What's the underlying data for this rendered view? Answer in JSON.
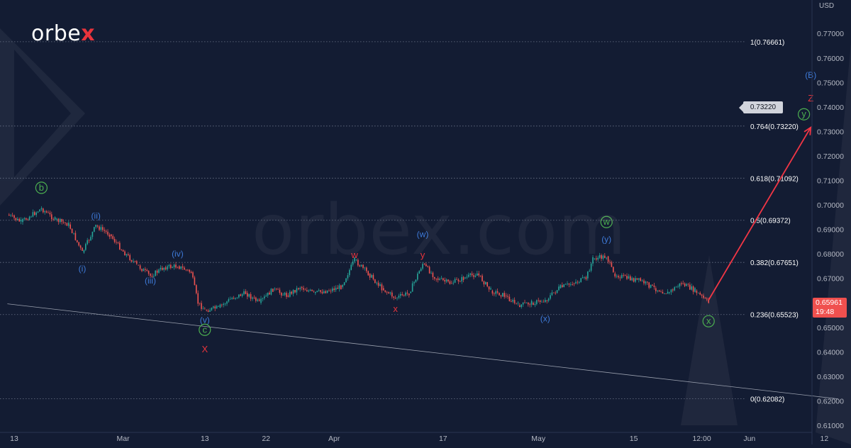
{
  "brand": {
    "logo_text_a": "orbe",
    "logo_text_x": "x",
    "watermark": "orbex.com"
  },
  "colors": {
    "background": "#131c33",
    "candle_up": "#26a69a",
    "candle_down": "#ef5350",
    "blue_label": "#3e7ad8",
    "green_label": "#4caf50",
    "red_label": "#e8343c",
    "arrow": "#f23645"
  },
  "axis": {
    "currency": "USD"
  },
  "current_price": {
    "value": "0.65961",
    "timer": "19:48"
  },
  "target_badge": "0.73220",
  "chart_data": {
    "type": "line",
    "title": "",
    "y_axis": {
      "min": 0.61,
      "max": 0.78,
      "ticks": [
        "0.77000",
        "0.76000",
        "0.75000",
        "0.74000",
        "0.73000",
        "0.72000",
        "0.71000",
        "0.70000",
        "0.69000",
        "0.68000",
        "0.67000",
        "0.66000",
        "0.65000",
        "0.64000",
        "0.63000",
        "0.62000",
        "0.61000"
      ]
    },
    "x_axis": {
      "ticks": [
        {
          "label": "13",
          "date": "2021-02-13"
        },
        {
          "label": "Mar",
          "date": "2021-03-01"
        },
        {
          "label": "13",
          "date": "2021-03-13"
        },
        {
          "label": "22",
          "date": "2021-03-22"
        },
        {
          "label": "Apr",
          "date": "2021-04-01"
        },
        {
          "label": "17",
          "date": "2021-04-17"
        },
        {
          "label": "May",
          "date": "2021-05-01"
        },
        {
          "label": "15",
          "date": "2021-05-15"
        },
        {
          "label": "12:00",
          "date": "2021-05-25"
        },
        {
          "label": "Jun",
          "date": "2021-06-01"
        },
        {
          "label": "12",
          "date": "2021-06-12"
        }
      ]
    },
    "fib_levels": [
      {
        "label": "1(0.76661)",
        "value": 0.76661
      },
      {
        "label": "0.764(0.73220)",
        "value": 0.7322
      },
      {
        "label": "0.618(0.71092)",
        "value": 0.71092
      },
      {
        "label": "0.5(0.69372)",
        "value": 0.69372
      },
      {
        "label": "0.382(0.67651)",
        "value": 0.67651
      },
      {
        "label": "0.236(0.65523)",
        "value": 0.65523
      },
      {
        "label": "0(0.62082)",
        "value": 0.62082
      }
    ],
    "price_path": [
      {
        "x": "2021-02-12",
        "y": 0.696
      },
      {
        "x": "2021-02-14",
        "y": 0.693
      },
      {
        "x": "2021-02-17",
        "y": 0.6985
      },
      {
        "x": "2021-02-19",
        "y": 0.694
      },
      {
        "x": "2021-02-21",
        "y": 0.692
      },
      {
        "x": "2021-02-23",
        "y": 0.6805
      },
      {
        "x": "2021-02-25",
        "y": 0.6915
      },
      {
        "x": "2021-02-27",
        "y": 0.688
      },
      {
        "x": "2021-03-01",
        "y": 0.681
      },
      {
        "x": "2021-03-03",
        "y": 0.6755
      },
      {
        "x": "2021-03-05",
        "y": 0.671
      },
      {
        "x": "2021-03-07",
        "y": 0.6745
      },
      {
        "x": "2021-03-09",
        "y": 0.675
      },
      {
        "x": "2021-03-11",
        "y": 0.6725
      },
      {
        "x": "2021-03-12",
        "y": 0.66
      },
      {
        "x": "2021-03-13",
        "y": 0.657
      },
      {
        "x": "2021-03-15",
        "y": 0.658
      },
      {
        "x": "2021-03-17",
        "y": 0.662
      },
      {
        "x": "2021-03-19",
        "y": 0.664
      },
      {
        "x": "2021-03-21",
        "y": 0.66
      },
      {
        "x": "2021-03-23",
        "y": 0.6655
      },
      {
        "x": "2021-03-25",
        "y": 0.663
      },
      {
        "x": "2021-03-27",
        "y": 0.6665
      },
      {
        "x": "2021-03-29",
        "y": 0.664
      },
      {
        "x": "2021-03-31",
        "y": 0.665
      },
      {
        "x": "2021-04-02",
        "y": 0.6665
      },
      {
        "x": "2021-04-04",
        "y": 0.6775
      },
      {
        "x": "2021-04-06",
        "y": 0.672
      },
      {
        "x": "2021-04-08",
        "y": 0.666
      },
      {
        "x": "2021-04-10",
        "y": 0.662
      },
      {
        "x": "2021-04-12",
        "y": 0.664
      },
      {
        "x": "2021-04-14",
        "y": 0.676
      },
      {
        "x": "2021-04-16",
        "y": 0.67
      },
      {
        "x": "2021-04-18",
        "y": 0.668
      },
      {
        "x": "2021-04-20",
        "y": 0.67
      },
      {
        "x": "2021-04-22",
        "y": 0.672
      },
      {
        "x": "2021-04-24",
        "y": 0.665
      },
      {
        "x": "2021-04-26",
        "y": 0.663
      },
      {
        "x": "2021-04-28",
        "y": 0.659
      },
      {
        "x": "2021-04-30",
        "y": 0.66
      },
      {
        "x": "2021-05-02",
        "y": 0.661
      },
      {
        "x": "2021-05-04",
        "y": 0.666
      },
      {
        "x": "2021-05-06",
        "y": 0.668
      },
      {
        "x": "2021-05-08",
        "y": 0.67
      },
      {
        "x": "2021-05-09",
        "y": 0.678
      },
      {
        "x": "2021-05-11",
        "y": 0.679
      },
      {
        "x": "2021-05-12",
        "y": 0.672
      },
      {
        "x": "2021-05-14",
        "y": 0.67
      },
      {
        "x": "2021-05-16",
        "y": 0.669
      },
      {
        "x": "2021-05-18",
        "y": 0.666
      },
      {
        "x": "2021-05-20",
        "y": 0.664
      },
      {
        "x": "2021-05-22",
        "y": 0.668
      },
      {
        "x": "2021-05-24",
        "y": 0.665
      },
      {
        "x": "2021-05-26",
        "y": 0.66
      }
    ],
    "projection": {
      "from": {
        "x": "2021-05-26",
        "y": 0.66
      },
      "to": {
        "x": "2021-06-10",
        "y": 0.7322
      }
    },
    "trendline": {
      "from": {
        "x": "2021-02-12",
        "y": 0.6596
      },
      "to": {
        "x": "2021-06-14",
        "y": 0.6208
      }
    },
    "wave_labels": [
      {
        "text": "b",
        "circled": true,
        "color": "green",
        "x": "2021-02-17",
        "y": 0.707
      },
      {
        "text": "(ii)",
        "color": "blue",
        "x": "2021-02-25",
        "y": 0.6955
      },
      {
        "text": "(i)",
        "color": "blue",
        "x": "2021-02-23",
        "y": 0.674
      },
      {
        "text": "(iv)",
        "color": "blue",
        "x": "2021-03-09",
        "y": 0.68
      },
      {
        "text": "(iii)",
        "color": "blue",
        "x": "2021-03-05",
        "y": 0.669
      },
      {
        "text": "(v)",
        "color": "blue",
        "x": "2021-03-13",
        "y": 0.653
      },
      {
        "text": "c",
        "circled": true,
        "color": "green",
        "x": "2021-03-13",
        "y": 0.649
      },
      {
        "text": "X",
        "color": "red",
        "x": "2021-03-13",
        "y": 0.641
      },
      {
        "text": "w",
        "color": "red",
        "x": "2021-04-04",
        "y": 0.6795
      },
      {
        "text": "x",
        "color": "red",
        "x": "2021-04-10",
        "y": 0.6575
      },
      {
        "text": "(w)",
        "color": "blue",
        "x": "2021-04-14",
        "y": 0.688
      },
      {
        "text": "y",
        "color": "red",
        "x": "2021-04-14",
        "y": 0.6795
      },
      {
        "text": "(x)",
        "color": "blue",
        "x": "2021-05-02",
        "y": 0.6535
      },
      {
        "text": "w",
        "circled": true,
        "color": "green",
        "x": "2021-05-11",
        "y": 0.693
      },
      {
        "text": "(y)",
        "color": "blue",
        "x": "2021-05-11",
        "y": 0.686
      },
      {
        "text": "x",
        "circled": true,
        "color": "green",
        "x": "2021-05-26",
        "y": 0.6525
      },
      {
        "text": "(B)",
        "color": "blue",
        "x": "2021-06-10",
        "y": 0.753
      },
      {
        "text": "Z",
        "color": "red",
        "x": "2021-06-10",
        "y": 0.7435
      },
      {
        "text": "y",
        "circled": true,
        "color": "green",
        "x": "2021-06-09",
        "y": 0.737
      }
    ]
  }
}
